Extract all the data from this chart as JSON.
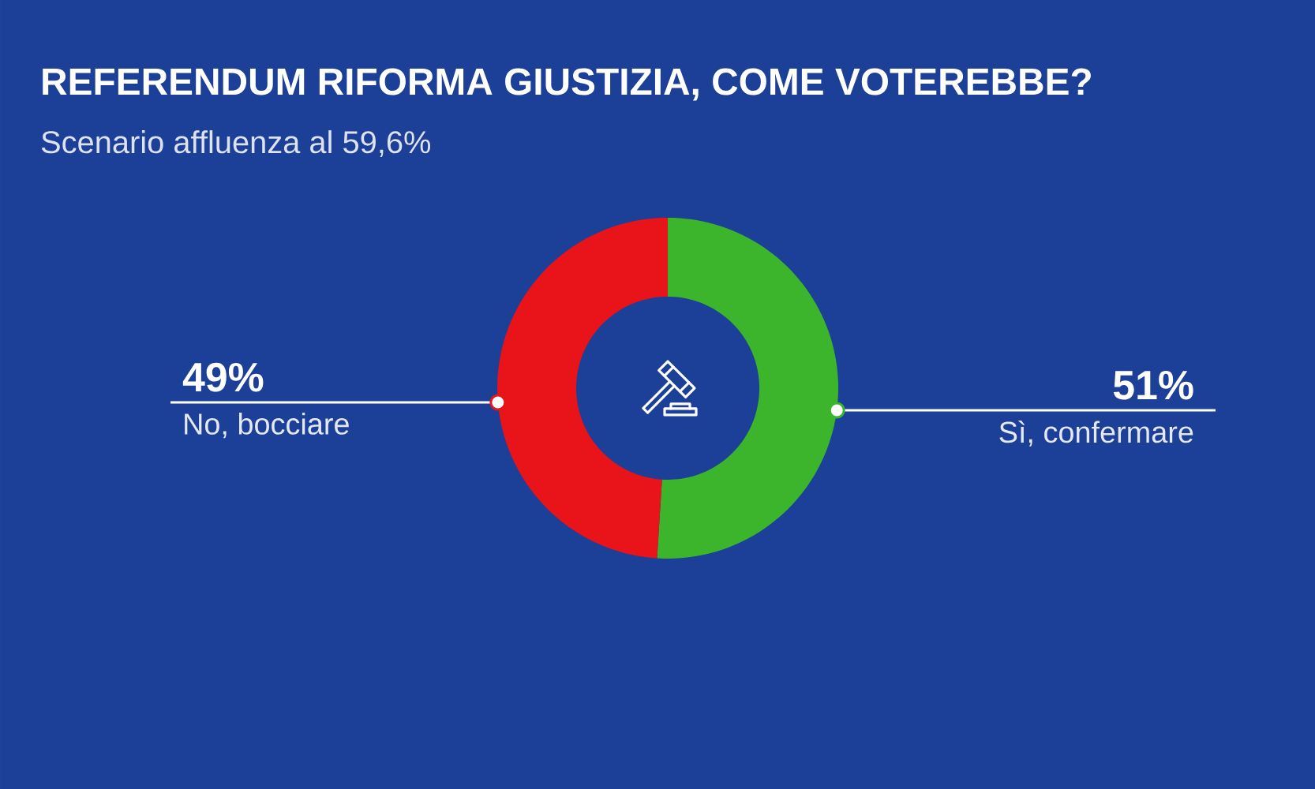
{
  "chart_data": {
    "type": "donut",
    "title": "REFERENDUM RIFORMA GIUSTIZIA, COME VOTEREBBE?",
    "subtitle": "Scenario affluenza al 59,6%",
    "categories": [
      "Sì, confermare",
      "No, bocciare"
    ],
    "values": [
      51,
      49
    ],
    "colors": [
      "#3cb52c",
      "#e8141a"
    ],
    "value_labels": [
      "51%",
      "49%"
    ]
  }
}
